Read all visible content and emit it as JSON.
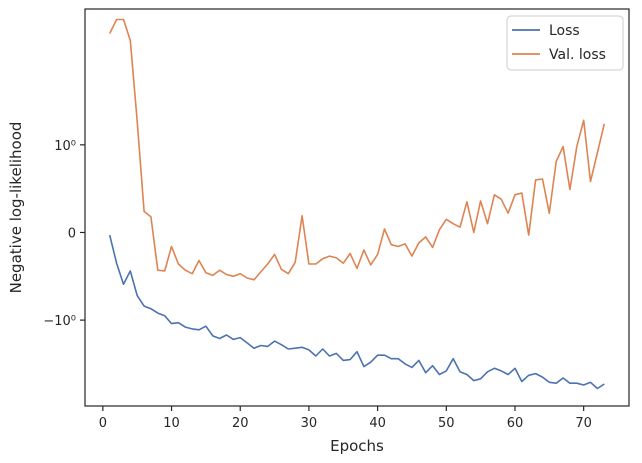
{
  "chart_data": {
    "type": "line",
    "title": "",
    "xlabel": "Epochs",
    "ylabel": "Negative log-likelihood",
    "xlim": [
      -2.6,
      76.6
    ],
    "ylim": [
      -1.98,
      2.55
    ],
    "x_ticks": [
      0,
      10,
      20,
      30,
      40,
      50,
      60,
      70
    ],
    "y_ticks": [
      {
        "value": 1,
        "label": "10⁰"
      },
      {
        "value": 0,
        "label": "0"
      },
      {
        "value": -1,
        "label": "−10⁰"
      }
    ],
    "y_scale": "symlog",
    "grid": false,
    "legend_position": "top-right",
    "x": [
      1,
      2,
      3,
      4,
      5,
      6,
      7,
      8,
      9,
      10,
      11,
      12,
      13,
      14,
      15,
      16,
      17,
      18,
      19,
      20,
      21,
      22,
      23,
      24,
      25,
      26,
      27,
      28,
      29,
      30,
      31,
      32,
      33,
      34,
      35,
      36,
      37,
      38,
      39,
      40,
      41,
      42,
      43,
      44,
      45,
      46,
      47,
      48,
      49,
      50,
      51,
      52,
      53,
      54,
      55,
      56,
      57,
      58,
      59,
      60,
      61,
      62,
      63,
      64,
      65,
      66,
      67,
      68,
      69,
      70,
      71,
      72,
      73
    ],
    "series": [
      {
        "name": "Loss",
        "color": "#4c72b0",
        "values": [
          -0.03,
          -0.35,
          -0.59,
          -0.44,
          -0.72,
          -0.84,
          -0.87,
          -0.92,
          -0.95,
          -1.04,
          -1.03,
          -1.08,
          -1.1,
          -1.11,
          -1.07,
          -1.18,
          -1.21,
          -1.17,
          -1.22,
          -1.2,
          -1.26,
          -1.32,
          -1.29,
          -1.3,
          -1.24,
          -1.28,
          -1.33,
          -1.32,
          -1.31,
          -1.34,
          -1.41,
          -1.33,
          -1.41,
          -1.38,
          -1.46,
          -1.45,
          -1.36,
          -1.53,
          -1.48,
          -1.4,
          -1.4,
          -1.44,
          -1.44,
          -1.5,
          -1.54,
          -1.46,
          -1.6,
          -1.52,
          -1.62,
          -1.58,
          -1.44,
          -1.59,
          -1.62,
          -1.69,
          -1.67,
          -1.59,
          -1.55,
          -1.58,
          -1.62,
          -1.55,
          -1.7,
          -1.63,
          -1.61,
          -1.65,
          -1.71,
          -1.72,
          -1.66,
          -1.72,
          -1.72,
          -1.74,
          -1.71,
          -1.78,
          -1.73
        ]
      },
      {
        "name": "Val. loss",
        "color": "#dd8452",
        "values": [
          2.27,
          2.43,
          2.43,
          2.19,
          1.27,
          0.24,
          0.18,
          -0.43,
          -0.44,
          -0.16,
          -0.36,
          -0.43,
          -0.47,
          -0.32,
          -0.46,
          -0.49,
          -0.43,
          -0.48,
          -0.5,
          -0.47,
          -0.52,
          -0.54,
          -0.45,
          -0.36,
          -0.25,
          -0.42,
          -0.47,
          -0.34,
          0.19,
          -0.36,
          -0.36,
          -0.3,
          -0.27,
          -0.29,
          -0.35,
          -0.24,
          -0.41,
          -0.2,
          -0.37,
          -0.25,
          0.04,
          -0.14,
          -0.16,
          -0.13,
          -0.27,
          -0.12,
          -0.05,
          -0.17,
          0.03,
          0.15,
          0.1,
          0.06,
          0.35,
          0.0,
          0.36,
          0.1,
          0.43,
          0.38,
          0.22,
          0.43,
          0.45,
          -0.03,
          0.6,
          0.61,
          0.22,
          0.81,
          0.98,
          0.49,
          0.98,
          1.28,
          0.58,
          0.91,
          1.24
        ]
      }
    ]
  }
}
